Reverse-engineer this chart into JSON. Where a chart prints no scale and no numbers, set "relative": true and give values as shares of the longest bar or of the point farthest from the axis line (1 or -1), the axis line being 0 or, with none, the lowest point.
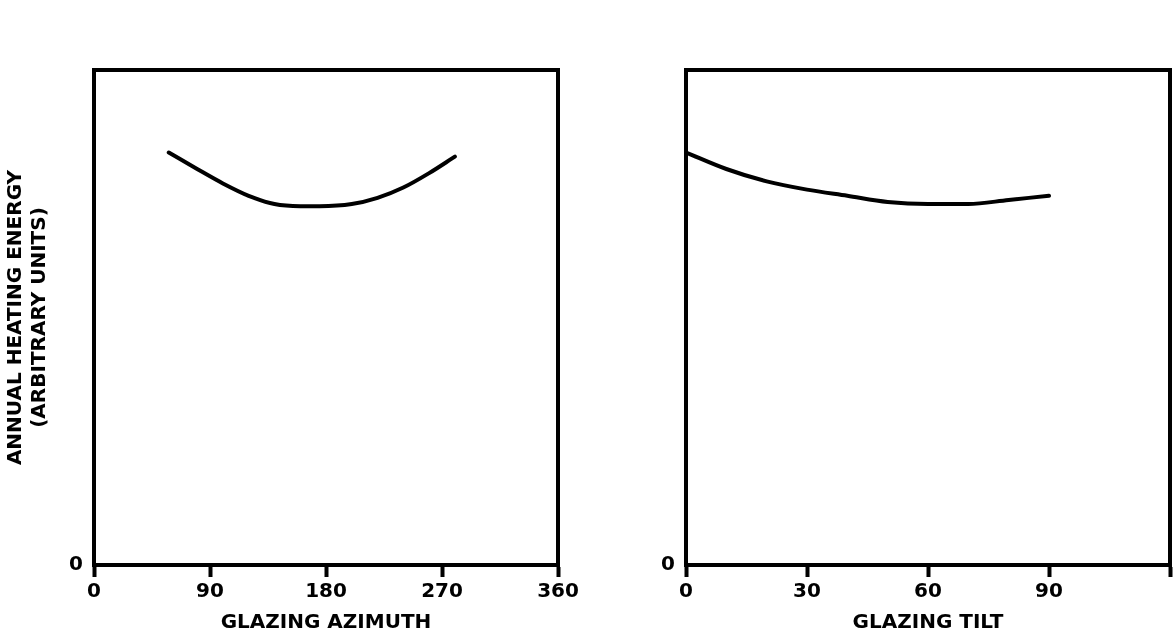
{
  "chart_data": [
    {
      "type": "line",
      "xlabel": "GLAZING AZIMUTH",
      "ylabel": "ANNUAL HEATING ENERGY\n(ARBITRARY UNITS)",
      "relative": true,
      "xlim": [
        0,
        360
      ],
      "xticks": [
        0,
        90,
        180,
        270,
        360
      ],
      "annotations": [
        "0"
      ],
      "grid": false,
      "legend": false,
      "marker": "none",
      "line_style": "solid",
      "series": [
        {
          "color": "#000000",
          "x": [
            58,
            80,
            100,
            120,
            140,
            160,
            175,
            200,
            220,
            240,
            260,
            280
          ],
          "values": [
            1.0,
            0.96,
            0.925,
            0.895,
            0.875,
            0.87,
            0.87,
            0.875,
            0.89,
            0.915,
            0.95,
            0.99
          ]
        }
      ]
    },
    {
      "type": "line",
      "xlabel": "GLAZING TILT",
      "relative": true,
      "xlim": [
        0,
        120
      ],
      "xticks": [
        0,
        30,
        60,
        90,
        {
          "value": 120,
          "label": null
        }
      ],
      "annotations": [
        "0"
      ],
      "grid": false,
      "legend": false,
      "marker": "none",
      "line_style": "solid",
      "series": [
        {
          "color": "#000000",
          "x": [
            0,
            10,
            20,
            30,
            40,
            50,
            60,
            70,
            80,
            90
          ],
          "values": [
            1.0,
            0.96,
            0.93,
            0.91,
            0.895,
            0.88,
            0.875,
            0.875,
            0.885,
            0.895
          ]
        }
      ]
    }
  ]
}
